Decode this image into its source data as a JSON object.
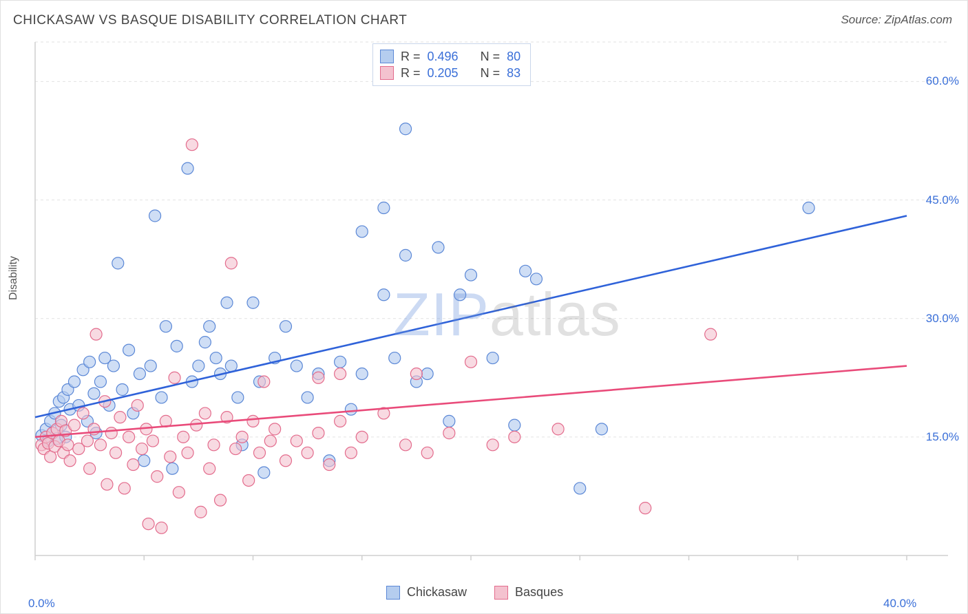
{
  "title": "CHICKASAW VS BASQUE DISABILITY CORRELATION CHART",
  "source": "Source: ZipAtlas.com",
  "ylabel": "Disability",
  "watermark": {
    "z": "ZIP",
    "rest": "atlas"
  },
  "chart": {
    "type": "scatter",
    "xlim": [
      0,
      40
    ],
    "ylim": [
      0,
      65
    ],
    "x_ticks": [
      0,
      5,
      10,
      15,
      20,
      25,
      30,
      35,
      40
    ],
    "x_tick_labels": {
      "0": "0.0%",
      "40": "40.0%"
    },
    "y_gridlines": [
      15,
      30,
      45,
      60,
      65
    ],
    "y_tick_labels": {
      "15": "15.0%",
      "30": "30.0%",
      "45": "45.0%",
      "60": "60.0%"
    },
    "grid_color": "#e2e2e2",
    "axis_color": "#cfcfcf",
    "background_color": "#ffffff",
    "marker_radius": 8.5,
    "marker_stroke_width": 1.2,
    "series": [
      {
        "name": "Chickasaw",
        "fill": "#b5cdef",
        "stroke": "#5a87d6",
        "fill_opacity": 0.65,
        "R": 0.496,
        "N": 80,
        "regression": {
          "x1": 0,
          "y1": 17.5,
          "x2": 40,
          "y2": 43,
          "color": "#2f62d9",
          "width": 2.6
        },
        "points": [
          [
            0.3,
            15.2
          ],
          [
            0.5,
            16
          ],
          [
            0.6,
            14.5
          ],
          [
            0.7,
            17
          ],
          [
            0.8,
            15.5
          ],
          [
            0.9,
            18
          ],
          [
            1.0,
            14.8
          ],
          [
            1.1,
            19.5
          ],
          [
            1.2,
            16.5
          ],
          [
            1.3,
            20
          ],
          [
            1.4,
            15
          ],
          [
            1.5,
            21
          ],
          [
            1.6,
            18.5
          ],
          [
            1.8,
            22
          ],
          [
            2.0,
            19
          ],
          [
            2.2,
            23.5
          ],
          [
            2.4,
            17
          ],
          [
            2.5,
            24.5
          ],
          [
            2.7,
            20.5
          ],
          [
            2.8,
            15.5
          ],
          [
            3.0,
            22
          ],
          [
            3.2,
            25
          ],
          [
            3.4,
            19
          ],
          [
            3.6,
            24
          ],
          [
            3.8,
            37
          ],
          [
            4.0,
            21
          ],
          [
            4.3,
            26
          ],
          [
            4.5,
            18
          ],
          [
            4.8,
            23
          ],
          [
            5.0,
            12
          ],
          [
            5.3,
            24
          ],
          [
            5.5,
            43
          ],
          [
            5.8,
            20
          ],
          [
            6.0,
            29
          ],
          [
            6.3,
            11
          ],
          [
            6.5,
            26.5
          ],
          [
            7.0,
            49
          ],
          [
            7.2,
            22
          ],
          [
            7.5,
            24
          ],
          [
            7.8,
            27
          ],
          [
            8.0,
            29
          ],
          [
            8.3,
            25
          ],
          [
            8.5,
            23
          ],
          [
            8.8,
            32
          ],
          [
            9.0,
            24
          ],
          [
            9.3,
            20
          ],
          [
            9.5,
            14
          ],
          [
            10.0,
            32
          ],
          [
            10.3,
            22
          ],
          [
            10.5,
            10.5
          ],
          [
            11,
            25
          ],
          [
            11.5,
            29
          ],
          [
            12,
            24
          ],
          [
            12.5,
            20
          ],
          [
            13,
            23
          ],
          [
            13.5,
            12
          ],
          [
            14,
            24.5
          ],
          [
            14.5,
            18.5
          ],
          [
            15,
            23
          ],
          [
            15,
            41
          ],
          [
            16,
            33
          ],
          [
            16,
            44
          ],
          [
            16.5,
            25
          ],
          [
            17,
            38
          ],
          [
            17,
            54
          ],
          [
            17.5,
            22
          ],
          [
            18,
            23
          ],
          [
            18.5,
            39
          ],
          [
            19,
            17
          ],
          [
            19.5,
            33
          ],
          [
            20,
            35.5
          ],
          [
            21,
            25
          ],
          [
            22,
            16.5
          ],
          [
            22.5,
            36
          ],
          [
            23,
            35
          ],
          [
            25,
            8.5
          ],
          [
            26,
            16
          ],
          [
            35.5,
            44
          ]
        ]
      },
      {
        "name": "Basques",
        "fill": "#f4c2cf",
        "stroke": "#e36b8c",
        "fill_opacity": 0.6,
        "R": 0.205,
        "N": 83,
        "regression": {
          "x1": 0,
          "y1": 15,
          "x2": 40,
          "y2": 24,
          "color": "#e94b7a",
          "width": 2.6
        },
        "points": [
          [
            0.3,
            14
          ],
          [
            0.4,
            13.5
          ],
          [
            0.5,
            15
          ],
          [
            0.6,
            14.2
          ],
          [
            0.7,
            12.5
          ],
          [
            0.8,
            15.5
          ],
          [
            0.9,
            13.8
          ],
          [
            1.0,
            16
          ],
          [
            1.1,
            14.5
          ],
          [
            1.2,
            17
          ],
          [
            1.3,
            13
          ],
          [
            1.4,
            15.8
          ],
          [
            1.5,
            14
          ],
          [
            1.6,
            12
          ],
          [
            1.8,
            16.5
          ],
          [
            2.0,
            13.5
          ],
          [
            2.2,
            18
          ],
          [
            2.4,
            14.5
          ],
          [
            2.5,
            11
          ],
          [
            2.7,
            16
          ],
          [
            2.8,
            28
          ],
          [
            3.0,
            14
          ],
          [
            3.2,
            19.5
          ],
          [
            3.3,
            9
          ],
          [
            3.5,
            15.5
          ],
          [
            3.7,
            13
          ],
          [
            3.9,
            17.5
          ],
          [
            4.1,
            8.5
          ],
          [
            4.3,
            15
          ],
          [
            4.5,
            11.5
          ],
          [
            4.7,
            19
          ],
          [
            4.9,
            13.5
          ],
          [
            5.1,
            16
          ],
          [
            5.2,
            4
          ],
          [
            5.4,
            14.5
          ],
          [
            5.6,
            10
          ],
          [
            5.8,
            3.5
          ],
          [
            6.0,
            17
          ],
          [
            6.2,
            12.5
          ],
          [
            6.4,
            22.5
          ],
          [
            6.6,
            8
          ],
          [
            6.8,
            15
          ],
          [
            7.0,
            13
          ],
          [
            7.2,
            52
          ],
          [
            7.4,
            16.5
          ],
          [
            7.6,
            5.5
          ],
          [
            7.8,
            18
          ],
          [
            8.0,
            11
          ],
          [
            8.2,
            14
          ],
          [
            8.5,
            7
          ],
          [
            8.8,
            17.5
          ],
          [
            9.0,
            37
          ],
          [
            9.2,
            13.5
          ],
          [
            9.5,
            15
          ],
          [
            9.8,
            9.5
          ],
          [
            10.0,
            17
          ],
          [
            10.3,
            13
          ],
          [
            10.5,
            22
          ],
          [
            10.8,
            14.5
          ],
          [
            11,
            16
          ],
          [
            11.5,
            12
          ],
          [
            12,
            14.5
          ],
          [
            12.5,
            13
          ],
          [
            13,
            15.5
          ],
          [
            13,
            22.5
          ],
          [
            13.5,
            11.5
          ],
          [
            14,
            17
          ],
          [
            14,
            23
          ],
          [
            14.5,
            13
          ],
          [
            15,
            15
          ],
          [
            16,
            18
          ],
          [
            17,
            14
          ],
          [
            17.5,
            23
          ],
          [
            18,
            13
          ],
          [
            19,
            15.5
          ],
          [
            20,
            24.5
          ],
          [
            21,
            14
          ],
          [
            22,
            15
          ],
          [
            24,
            16
          ],
          [
            28,
            6
          ],
          [
            31,
            28
          ]
        ]
      }
    ]
  },
  "legend_top": [
    {
      "series": 0,
      "r_label": "R =",
      "r_val": "0.496",
      "n_label": "N =",
      "n_val": "80"
    },
    {
      "series": 1,
      "r_label": "R =",
      "r_val": "0.205",
      "n_label": "N =",
      "n_val": "83"
    }
  ],
  "legend_bottom": [
    {
      "series": 0,
      "label": "Chickasaw"
    },
    {
      "series": 1,
      "label": "Basques"
    }
  ]
}
